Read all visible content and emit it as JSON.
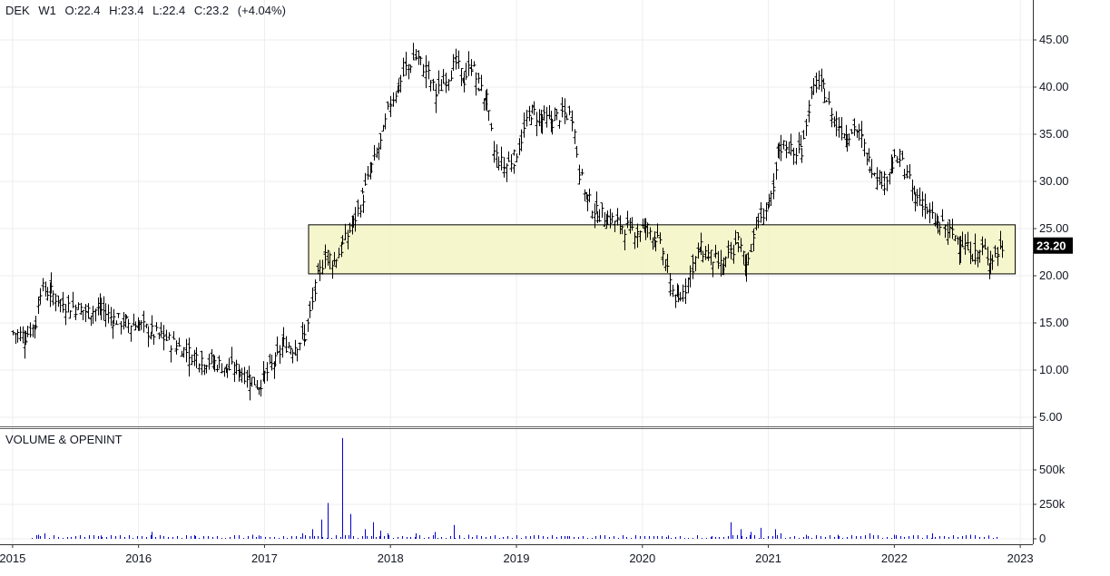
{
  "header": {
    "symbol": "DEK",
    "interval": "W1",
    "open": "O:22.4",
    "high": "H:23.4",
    "low": "L:22.4",
    "close": "C:23.2",
    "change": "(+4.04%)"
  },
  "volume_pane": {
    "title": "VOLUME & OPENINT"
  },
  "colors": {
    "bars": "#000000",
    "volume": "#0000cc",
    "zone_fill": "#f5f5c4",
    "zone_border": "#000000",
    "last_price_bg": "#000000",
    "last_price_text": "#ffffff"
  },
  "chart_data": [
    {
      "type": "ohlc",
      "title": "",
      "xlabel": "",
      "ylabel": "",
      "x_ticks": [
        "2015",
        "2016",
        "2017",
        "2018",
        "2019",
        "2020",
        "2021",
        "2022",
        "2023"
      ],
      "y_ticks": [
        "5.00",
        "10.00",
        "15.00",
        "20.00",
        "25.00",
        "30.00",
        "35.00",
        "40.00",
        "45.00"
      ],
      "ylim": [
        2.5,
        49
      ],
      "xlim": [
        2014.9,
        2023.1
      ],
      "last_price": "23.20",
      "highlight_zone": {
        "y_from": 20.2,
        "y_to": 25.4,
        "x_from": 2017.35,
        "x_to": 2022.96
      },
      "grid": true,
      "series": [
        {
          "name": "DEK",
          "points": [
            [
              2015.0,
              14.0
            ],
            [
              2015.1,
              13.6
            ],
            [
              2015.18,
              15.0
            ],
            [
              2015.22,
              18.6
            ],
            [
              2015.3,
              18.2
            ],
            [
              2015.4,
              17.0
            ],
            [
              2015.5,
              16.6
            ],
            [
              2015.6,
              16.2
            ],
            [
              2015.7,
              16.4
            ],
            [
              2015.8,
              15.4
            ],
            [
              2015.9,
              15.0
            ],
            [
              2016.0,
              14.8
            ],
            [
              2016.1,
              14.0
            ],
            [
              2016.2,
              13.4
            ],
            [
              2016.3,
              12.6
            ],
            [
              2016.4,
              11.8
            ],
            [
              2016.5,
              11.2
            ],
            [
              2016.6,
              10.8
            ],
            [
              2016.7,
              10.2
            ],
            [
              2016.8,
              10.0
            ],
            [
              2016.88,
              9.2
            ],
            [
              2016.95,
              8.4
            ],
            [
              2017.0,
              9.4
            ],
            [
              2017.08,
              10.8
            ],
            [
              2017.15,
              12.8
            ],
            [
              2017.22,
              12.4
            ],
            [
              2017.32,
              13.6
            ],
            [
              2017.4,
              18.5
            ],
            [
              2017.48,
              22.5
            ],
            [
              2017.55,
              21.5
            ],
            [
              2017.62,
              23.2
            ],
            [
              2017.7,
              25.5
            ],
            [
              2017.78,
              28.4
            ],
            [
              2017.85,
              31.5
            ],
            [
              2017.92,
              34.0
            ],
            [
              2018.0,
              38.5
            ],
            [
              2018.06,
              40.0
            ],
            [
              2018.12,
              42.0
            ],
            [
              2018.2,
              43.2
            ],
            [
              2018.28,
              41.8
            ],
            [
              2018.36,
              39.2
            ],
            [
              2018.44,
              41.0
            ],
            [
              2018.52,
              42.5
            ],
            [
              2018.58,
              40.8
            ],
            [
              2018.64,
              42.4
            ],
            [
              2018.7,
              40.2
            ],
            [
              2018.76,
              38.5
            ],
            [
              2018.82,
              33.0
            ],
            [
              2018.9,
              31.5
            ],
            [
              2018.98,
              32.5
            ],
            [
              2019.06,
              35.4
            ],
            [
              2019.12,
              37.4
            ],
            [
              2019.2,
              36.6
            ],
            [
              2019.28,
              36.4
            ],
            [
              2019.36,
              37.2
            ],
            [
              2019.44,
              37.0
            ],
            [
              2019.5,
              31.0
            ],
            [
              2019.56,
              28.2
            ],
            [
              2019.64,
              26.6
            ],
            [
              2019.72,
              26.2
            ],
            [
              2019.8,
              25.6
            ],
            [
              2019.88,
              25.0
            ],
            [
              2019.96,
              24.8
            ],
            [
              2020.02,
              25.2
            ],
            [
              2020.1,
              24.2
            ],
            [
              2020.16,
              22.4
            ],
            [
              2020.22,
              19.0
            ],
            [
              2020.28,
              17.2
            ],
            [
              2020.34,
              18.8
            ],
            [
              2020.4,
              21.2
            ],
            [
              2020.46,
              22.8
            ],
            [
              2020.52,
              22.2
            ],
            [
              2020.58,
              21.6
            ],
            [
              2020.64,
              20.8
            ],
            [
              2020.7,
              22.4
            ],
            [
              2020.76,
              23.6
            ],
            [
              2020.82,
              21.2
            ],
            [
              2020.88,
              24.5
            ],
            [
              2020.94,
              26.5
            ],
            [
              2021.0,
              27.4
            ],
            [
              2021.04,
              28.8
            ],
            [
              2021.08,
              33.5
            ],
            [
              2021.14,
              34.0
            ],
            [
              2021.2,
              32.8
            ],
            [
              2021.26,
              33.5
            ],
            [
              2021.32,
              38.0
            ],
            [
              2021.38,
              40.4
            ],
            [
              2021.44,
              39.6
            ],
            [
              2021.5,
              37.0
            ],
            [
              2021.56,
              36.0
            ],
            [
              2021.62,
              35.0
            ],
            [
              2021.68,
              35.8
            ],
            [
              2021.74,
              34.4
            ],
            [
              2021.8,
              32.0
            ],
            [
              2021.86,
              30.8
            ],
            [
              2021.92,
              30.0
            ],
            [
              2021.98,
              31.8
            ],
            [
              2022.04,
              32.4
            ],
            [
              2022.1,
              30.6
            ],
            [
              2022.16,
              28.4
            ],
            [
              2022.22,
              28.0
            ],
            [
              2022.28,
              26.4
            ],
            [
              2022.34,
              25.4
            ],
            [
              2022.4,
              25.0
            ],
            [
              2022.46,
              24.4
            ],
            [
              2022.52,
              23.8
            ],
            [
              2022.58,
              22.8
            ],
            [
              2022.64,
              22.2
            ],
            [
              2022.7,
              22.8
            ],
            [
              2022.76,
              21.8
            ],
            [
              2022.82,
              22.4
            ],
            [
              2022.86,
              23.2
            ]
          ]
        }
      ]
    },
    {
      "type": "bar",
      "title": "VOLUME & OPENINT",
      "y_ticks": [
        "0",
        "250k",
        "500k"
      ],
      "ylim": [
        0,
        750000
      ],
      "series": [
        {
          "name": "volume",
          "points": [
            [
              2015.2,
              30000
            ],
            [
              2015.25,
              40000
            ],
            [
              2015.7,
              25000
            ],
            [
              2016.1,
              50000
            ],
            [
              2016.45,
              20000
            ],
            [
              2016.9,
              30000
            ],
            [
              2016.95,
              25000
            ],
            [
              2017.3,
              40000
            ],
            [
              2017.38,
              70000
            ],
            [
              2017.45,
              140000
            ],
            [
              2017.5,
              260000
            ],
            [
              2017.62,
              730000
            ],
            [
              2017.68,
              180000
            ],
            [
              2017.8,
              70000
            ],
            [
              2017.86,
              120000
            ],
            [
              2017.92,
              60000
            ],
            [
              2017.98,
              40000
            ],
            [
              2018.2,
              40000
            ],
            [
              2018.35,
              50000
            ],
            [
              2018.5,
              100000
            ],
            [
              2018.62,
              30000
            ],
            [
              2019.0,
              20000
            ],
            [
              2019.4,
              20000
            ],
            [
              2020.2,
              25000
            ],
            [
              2020.55,
              20000
            ],
            [
              2020.7,
              120000
            ],
            [
              2020.78,
              70000
            ],
            [
              2020.86,
              50000
            ],
            [
              2020.94,
              80000
            ],
            [
              2021.05,
              70000
            ],
            [
              2021.1,
              40000
            ],
            [
              2021.3,
              30000
            ],
            [
              2021.55,
              30000
            ],
            [
              2021.8,
              40000
            ],
            [
              2022.0,
              30000
            ],
            [
              2022.3,
              40000
            ],
            [
              2022.6,
              30000
            ],
            [
              2022.75,
              25000
            ]
          ]
        }
      ]
    }
  ]
}
